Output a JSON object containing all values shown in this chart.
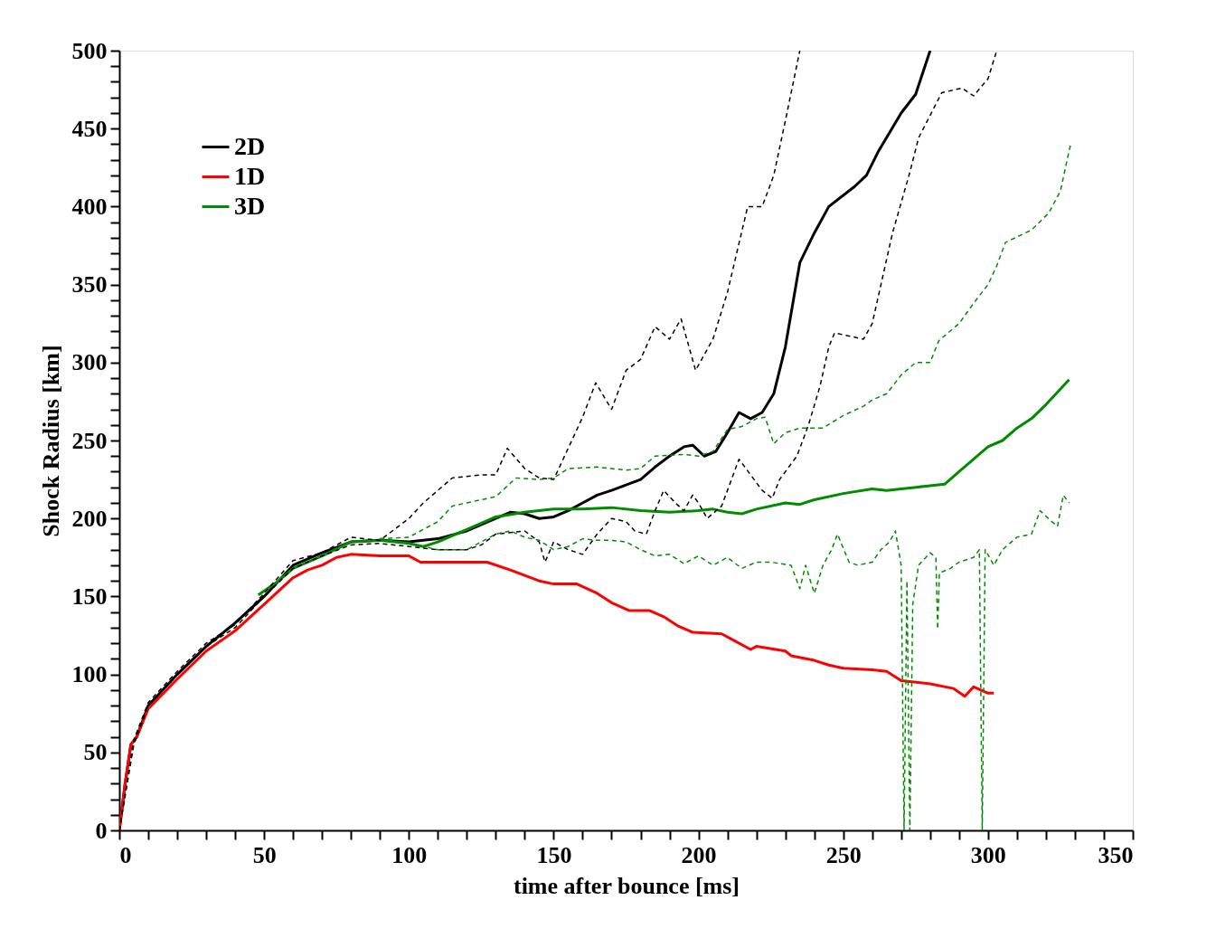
{
  "chart_data": {
    "type": "line",
    "xlabel": "time after bounce [ms]",
    "ylabel": "Shock Radius [km]",
    "xlim": [
      0,
      350
    ],
    "ylim": [
      0,
      500
    ],
    "xticks": [
      0,
      {
        "value": 10,
        "label": null
      },
      {
        "value": 20,
        "label": null
      },
      {
        "value": 30,
        "label": null
      },
      {
        "value": 40,
        "label": null
      },
      50,
      {
        "value": 60,
        "label": null
      },
      {
        "value": 70,
        "label": null
      },
      {
        "value": 80,
        "label": null
      },
      {
        "value": 90,
        "label": null
      },
      100,
      {
        "value": 110,
        "label": null
      },
      {
        "value": 120,
        "label": null
      },
      {
        "value": 130,
        "label": null
      },
      {
        "value": 140,
        "label": null
      },
      150,
      {
        "value": 160,
        "label": null
      },
      {
        "value": 170,
        "label": null
      },
      {
        "value": 180,
        "label": null
      },
      {
        "value": 190,
        "label": null
      },
      200,
      {
        "value": 210,
        "label": null
      },
      {
        "value": 220,
        "label": null
      },
      {
        "value": 230,
        "label": null
      },
      {
        "value": 240,
        "label": null
      },
      250,
      {
        "value": 260,
        "label": null
      },
      {
        "value": 270,
        "label": null
      },
      {
        "value": 280,
        "label": null
      },
      {
        "value": 290,
        "label": null
      },
      300,
      {
        "value": 310,
        "label": null
      },
      {
        "value": 320,
        "label": null
      },
      {
        "value": 330,
        "label": null
      },
      {
        "value": 340,
        "label": null
      },
      350
    ],
    "yticks": [
      0,
      {
        "value": 10,
        "label": null
      },
      {
        "value": 20,
        "label": null
      },
      {
        "value": 30,
        "label": null
      },
      {
        "value": 40,
        "label": null
      },
      50,
      {
        "value": 60,
        "label": null
      },
      {
        "value": 70,
        "label": null
      },
      {
        "value": 80,
        "label": null
      },
      {
        "value": 90,
        "label": null
      },
      100,
      {
        "value": 110,
        "label": null
      },
      {
        "value": 120,
        "label": null
      },
      {
        "value": 130,
        "label": null
      },
      {
        "value": 140,
        "label": null
      },
      150,
      {
        "value": 160,
        "label": null
      },
      {
        "value": 170,
        "label": null
      },
      {
        "value": 180,
        "label": null
      },
      {
        "value": 190,
        "label": null
      },
      200,
      {
        "value": 210,
        "label": null
      },
      {
        "value": 220,
        "label": null
      },
      {
        "value": 230,
        "label": null
      },
      {
        "value": 240,
        "label": null
      },
      250,
      {
        "value": 260,
        "label": null
      },
      {
        "value": 270,
        "label": null
      },
      {
        "value": 280,
        "label": null
      },
      {
        "value": 290,
        "label": null
      },
      300,
      {
        "value": 310,
        "label": null
      },
      {
        "value": 320,
        "label": null
      },
      {
        "value": 330,
        "label": null
      },
      {
        "value": 340,
        "label": null
      },
      350,
      {
        "value": 360,
        "label": null
      },
      {
        "value": 370,
        "label": null
      },
      {
        "value": 380,
        "label": null
      },
      {
        "value": 390,
        "label": null
      },
      400,
      {
        "value": 410,
        "label": null
      },
      {
        "value": 420,
        "label": null
      },
      {
        "value": 430,
        "label": null
      },
      {
        "value": 440,
        "label": null
      },
      450,
      {
        "value": 460,
        "label": null
      },
      {
        "value": 470,
        "label": null
      },
      {
        "value": 480,
        "label": null
      },
      {
        "value": 490,
        "label": null
      },
      500
    ],
    "grid": false,
    "legend": "top left",
    "series": [
      {
        "name": "2D",
        "color": "#000000",
        "line_style": "solid",
        "x": [
          0,
          2,
          4,
          6,
          10,
          15,
          20,
          30,
          40,
          50,
          60,
          70,
          80,
          90,
          100,
          110,
          120,
          130,
          135,
          140,
          145,
          150,
          155,
          160,
          165,
          170,
          180,
          185,
          190,
          195,
          198,
          202,
          206,
          210,
          214,
          218,
          222,
          226,
          230,
          235,
          240,
          245,
          254,
          258,
          262,
          270,
          275,
          280
        ],
        "values": [
          0,
          30,
          55,
          60,
          80,
          90,
          100,
          118,
          133,
          150,
          170,
          178,
          185,
          186,
          185,
          187,
          192,
          200,
          204,
          203,
          200,
          201,
          205,
          210,
          215,
          218,
          225,
          233,
          240,
          246,
          247,
          240,
          243,
          255,
          268,
          264,
          268,
          280,
          310,
          364,
          383,
          400,
          413,
          420,
          435,
          460,
          472,
          500
        ]
      },
      {
        "name": "1D",
        "color": "#ff0000",
        "line_style": "solid",
        "x": [
          0,
          2,
          4,
          6,
          10,
          20,
          30,
          40,
          50,
          60,
          65,
          70,
          75,
          80,
          90,
          100,
          104,
          110,
          127,
          135,
          145,
          150,
          158,
          165,
          170,
          176,
          183,
          188,
          193,
          198,
          208,
          212,
          218,
          220,
          230,
          232,
          240,
          245,
          250,
          260,
          265,
          270,
          280,
          288,
          292,
          295,
          300,
          302
        ],
        "values": [
          0,
          30,
          55,
          60,
          78,
          97,
          115,
          128,
          145,
          162,
          167,
          170,
          175,
          177,
          176,
          176,
          172,
          172,
          172,
          167,
          160,
          158,
          158,
          152,
          146,
          141,
          141,
          137,
          131,
          127,
          126,
          122,
          116,
          118,
          115,
          112,
          109,
          106,
          104,
          103,
          102,
          96,
          94,
          91,
          86,
          92,
          88,
          88
        ]
      },
      {
        "name": "3D",
        "color": "#008c00",
        "line_style": "solid",
        "x": [
          48,
          55,
          60,
          70,
          80,
          90,
          100,
          105,
          110,
          120,
          130,
          140,
          150,
          160,
          170,
          180,
          190,
          200,
          205,
          210,
          215,
          220,
          230,
          235,
          240,
          250,
          260,
          265,
          270,
          280,
          285,
          290,
          295,
          300,
          305,
          310,
          315,
          320,
          328
        ],
        "values": [
          151,
          160,
          168,
          176,
          185,
          186,
          184,
          182,
          185,
          193,
          201,
          204,
          206,
          206,
          207,
          205,
          204,
          205,
          206,
          204,
          203,
          206,
          210,
          209,
          212,
          216,
          219,
          218,
          219,
          221,
          222,
          230,
          238,
          246,
          250,
          258,
          264,
          273,
          289
        ]
      },
      {
        "color": "#000000",
        "line_style": "dashed",
        "x": [
          0,
          5,
          10,
          20,
          30,
          40,
          50,
          60,
          70,
          80,
          90,
          100,
          105,
          110,
          115,
          125,
          130,
          134,
          140,
          145,
          150,
          155,
          160,
          164.5,
          170,
          175,
          180,
          185,
          190,
          194,
          199,
          205,
          210,
          217,
          222,
          226,
          230,
          235
        ],
        "values": [
          0,
          58,
          82,
          102,
          120,
          132,
          152,
          173,
          178,
          188,
          186,
          200,
          210,
          218,
          226,
          228,
          228,
          245,
          232,
          226,
          225,
          245,
          265,
          287,
          270,
          295,
          302,
          323,
          315,
          328,
          295,
          315,
          345,
          400,
          400,
          420,
          455,
          500
        ]
      },
      {
        "color": "#000000",
        "line_style": "dashed",
        "x": [
          0,
          5,
          10,
          20,
          30,
          40,
          50,
          60,
          70,
          80,
          90,
          100,
          110,
          120,
          125,
          130,
          140,
          145,
          147,
          150,
          155,
          160,
          165,
          170,
          175,
          178,
          182,
          185,
          188,
          192,
          195,
          198,
          200,
          203,
          208,
          214,
          218,
          222,
          225.5,
          228,
          234,
          238,
          242,
          245,
          247,
          257,
          260,
          267,
          273,
          276,
          284,
          291,
          295,
          300,
          303
        ],
        "values": [
          0,
          55,
          80,
          100,
          118,
          130,
          150,
          168,
          176,
          183,
          184,
          182,
          180,
          180,
          183,
          190,
          192,
          185,
          172,
          185,
          180,
          177,
          190,
          200,
          198,
          192,
          190,
          205,
          218,
          210,
          205,
          215,
          210,
          200,
          208,
          238,
          228,
          218,
          213,
          225,
          240,
          260,
          285,
          310,
          319,
          315,
          325,
          383,
          422,
          444,
          473,
          476,
          471,
          482,
          500
        ]
      },
      {
        "color": "#008c00",
        "line_style": "dashed",
        "x": [
          90,
          100,
          110,
          115,
          120,
          130,
          137,
          145,
          150,
          155,
          165,
          175,
          180,
          185,
          195,
          200,
          205,
          210,
          215,
          220,
          223,
          226,
          230,
          235,
          243,
          250,
          257,
          260,
          265,
          270,
          275,
          280,
          283,
          290,
          295,
          300,
          303,
          306,
          315,
          321,
          325,
          328.5
        ],
        "values": [
          187,
          188,
          198,
          208,
          210,
          214,
          226,
          225,
          226,
          232,
          233,
          231,
          232,
          240,
          241,
          240,
          243,
          257,
          259,
          264,
          265,
          248,
          255,
          258,
          258,
          266,
          272,
          276,
          280,
          292,
          300,
          300,
          314,
          325,
          338,
          350,
          362,
          377,
          385,
          396,
          410,
          440
        ]
      },
      {
        "color": "#008c00",
        "line_style": "dashed",
        "x": [
          90,
          100,
          110,
          120,
          130,
          135,
          140,
          145,
          150,
          155,
          160,
          165,
          170,
          175,
          180,
          185,
          190,
          195,
          200,
          205,
          210,
          215,
          220,
          225,
          232,
          235,
          237,
          240,
          243,
          246,
          248,
          252,
          255,
          260,
          263,
          266,
          268,
          270,
          271,
          272,
          273,
          274,
          276,
          280,
          282,
          282.6,
          283.2,
          287,
          290,
          295,
          297,
          298,
          299,
          302,
          305,
          310,
          315,
          318,
          322,
          324,
          326,
          328
        ],
        "values": [
          187,
          184,
          180,
          180,
          190,
          192,
          188,
          186,
          180,
          182,
          187,
          186,
          186,
          185,
          180,
          176,
          177,
          171,
          176,
          170,
          175,
          168,
          172,
          172,
          170,
          155,
          170,
          152,
          170,
          180,
          190,
          172,
          170,
          172,
          180,
          185,
          192,
          170,
          0,
          160,
          0,
          145,
          170,
          178,
          175,
          129,
          165,
          168,
          172,
          175,
          180,
          0,
          180,
          170,
          180,
          188,
          190,
          205,
          198,
          195,
          215,
          210
        ]
      }
    ]
  }
}
